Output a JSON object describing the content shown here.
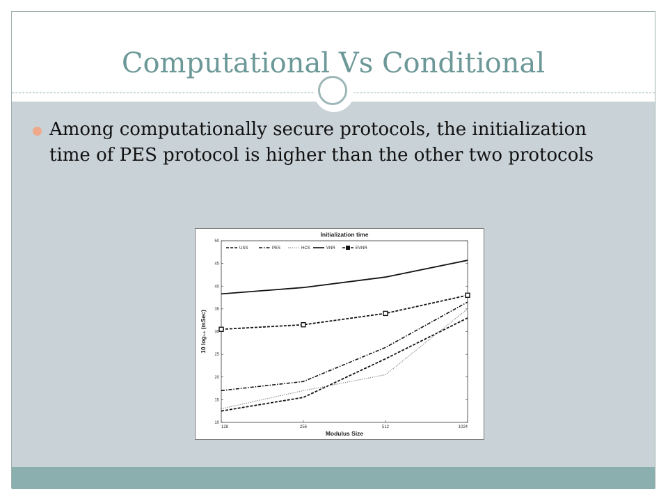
{
  "slide": {
    "title": "Computational Vs Conditional",
    "bullet": "Among computationally secure protocols, the initialization time of PES protocol is higher than the other two protocols",
    "colors": {
      "title": "#6d9898",
      "body_bg": "#c9d2d7",
      "footer": "#8aafae",
      "bullet": "#f0a88a"
    }
  },
  "chart_data": {
    "type": "line",
    "title": "Initialization time",
    "xlabel": "Modulus Size",
    "ylabel": "10 log₁₀ (mSec)",
    "categories": [
      "128",
      "256",
      "512",
      "1024"
    ],
    "yticks": [
      10,
      15,
      20,
      25,
      30,
      35,
      40,
      45,
      50
    ],
    "ylim": [
      10,
      50
    ],
    "grid": false,
    "legend_position": "top",
    "series": [
      {
        "name": "USS",
        "style": "dashed",
        "marker": "none",
        "values": [
          12.5,
          15.5,
          24,
          33
        ]
      },
      {
        "name": "PES",
        "style": "dashdot",
        "marker": "none",
        "values": [
          17,
          19,
          26.5,
          36.5
        ]
      },
      {
        "name": "HCS",
        "style": "dotted",
        "marker": "none",
        "values": [
          13,
          17,
          20.5,
          35
        ]
      },
      {
        "name": "VNR",
        "style": "solid",
        "marker": "none",
        "values": [
          38.3,
          39.7,
          42,
          45.7
        ]
      },
      {
        "name": "EVNR",
        "style": "dashed",
        "marker": "square",
        "values": [
          30.5,
          31.5,
          34,
          38
        ]
      }
    ]
  }
}
